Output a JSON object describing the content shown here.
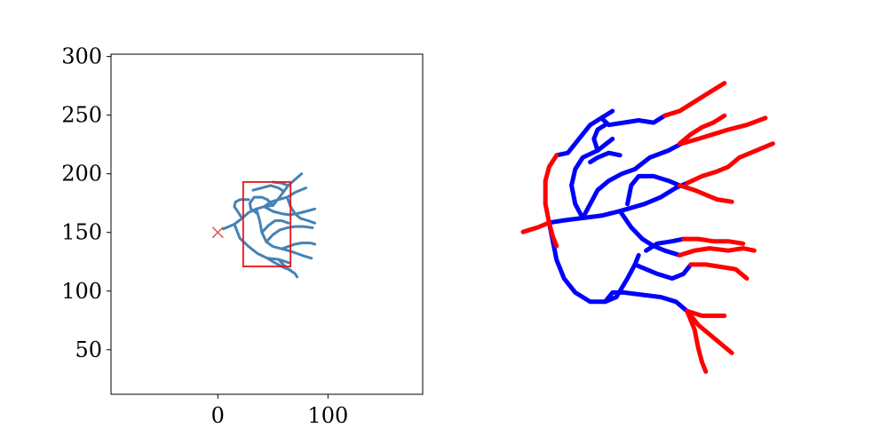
{
  "chart_data": [
    {
      "type": "line",
      "title": "",
      "xlabel": "",
      "ylabel": "",
      "xlim": [
        -97,
        186
      ],
      "ylim": [
        12,
        302
      ],
      "grid": false,
      "x_ticks": [
        {
          "value": 0,
          "label": "0"
        },
        {
          "value": 100,
          "label": "100"
        }
      ],
      "y_ticks": [
        {
          "value": 50,
          "label": "50"
        },
        {
          "value": 100,
          "label": "100"
        },
        {
          "value": 150,
          "label": "150"
        },
        {
          "value": 200,
          "label": "200"
        },
        {
          "value": 250,
          "label": "250"
        },
        {
          "value": 300,
          "label": "300"
        }
      ],
      "colors": {
        "branches": "#4682b4",
        "marker": "#d9534f",
        "box": "#e8141a"
      },
      "marker": {
        "shape": "x",
        "x": 0,
        "y": 150
      },
      "roi_box": {
        "x": [
          23,
          66
        ],
        "y": [
          121,
          193
        ]
      },
      "branches": [
        [
          [
            5,
            153
          ],
          [
            15,
            157
          ],
          [
            22,
            162
          ],
          [
            28,
            167
          ],
          [
            35,
            170
          ],
          [
            42,
            172
          ],
          [
            50,
            173
          ]
        ],
        [
          [
            22,
            162
          ],
          [
            18,
            168
          ],
          [
            15,
            172
          ],
          [
            16,
            176
          ],
          [
            20,
            178
          ],
          [
            28,
            178
          ]
        ],
        [
          [
            15,
            157
          ],
          [
            20,
            145
          ],
          [
            28,
            138
          ],
          [
            36,
            132
          ],
          [
            45,
            128
          ],
          [
            55,
            127
          ],
          [
            65,
            124
          ]
        ],
        [
          [
            50,
            173
          ],
          [
            56,
            180
          ],
          [
            60,
            185
          ],
          [
            64,
            190
          ],
          [
            70,
            195
          ],
          [
            76,
            200
          ]
        ],
        [
          [
            50,
            173
          ],
          [
            45,
            178
          ],
          [
            40,
            180
          ],
          [
            33,
            180
          ],
          [
            29,
            175
          ],
          [
            30,
            170
          ],
          [
            36,
            166
          ]
        ],
        [
          [
            35,
            170
          ],
          [
            38,
            160
          ],
          [
            40,
            150
          ],
          [
            44,
            142
          ],
          [
            50,
            138
          ],
          [
            58,
            136
          ],
          [
            66,
            134
          ]
        ],
        [
          [
            42,
            172
          ],
          [
            48,
            176
          ],
          [
            55,
            178
          ],
          [
            63,
            180
          ],
          [
            70,
            184
          ],
          [
            80,
            188
          ]
        ],
        [
          [
            42,
            172
          ],
          [
            50,
            168
          ],
          [
            58,
            166
          ],
          [
            65,
            165
          ],
          [
            72,
            166
          ],
          [
            80,
            168
          ],
          [
            88,
            170
          ]
        ],
        [
          [
            55,
            127
          ],
          [
            60,
            122
          ],
          [
            65,
            118
          ],
          [
            70,
            115
          ],
          [
            72,
            112
          ]
        ],
        [
          [
            58,
            136
          ],
          [
            64,
            138
          ],
          [
            70,
            140
          ],
          [
            76,
            141
          ],
          [
            84,
            141
          ],
          [
            88,
            140
          ]
        ],
        [
          [
            63,
            180
          ],
          [
            66,
            172
          ],
          [
            70,
            166
          ],
          [
            75,
            162
          ],
          [
            82,
            160
          ],
          [
            88,
            158
          ]
        ],
        [
          [
            60,
            185
          ],
          [
            55,
            188
          ],
          [
            48,
            190
          ],
          [
            40,
            188
          ],
          [
            32,
            186
          ]
        ],
        [
          [
            44,
            142
          ],
          [
            50,
            148
          ],
          [
            56,
            152
          ],
          [
            63,
            154
          ],
          [
            70,
            155
          ],
          [
            78,
            155
          ],
          [
            86,
            154
          ]
        ],
        [
          [
            45,
            128
          ],
          [
            52,
            124
          ],
          [
            60,
            120
          ],
          [
            66,
            118
          ]
        ],
        [
          [
            66,
            134
          ],
          [
            72,
            132
          ],
          [
            78,
            130
          ],
          [
            85,
            128
          ]
        ],
        [
          [
            40,
            150
          ],
          [
            46,
            156
          ],
          [
            52,
            160
          ],
          [
            58,
            160
          ],
          [
            64,
            158
          ]
        ],
        [
          [
            64,
            190
          ],
          [
            58,
            192
          ],
          [
            50,
            193
          ]
        ]
      ]
    },
    {
      "type": "line",
      "title": "",
      "xlabel": "",
      "ylabel": "",
      "axes": "off",
      "colors": {
        "inner": "#0000ff",
        "outer": "#ff0000"
      },
      "inner_segments": [
        [
          [
            0.04,
            0.48
          ],
          [
            0.12,
            0.47
          ],
          [
            0.22,
            0.46
          ],
          [
            0.32,
            0.45
          ],
          [
            0.42,
            0.43
          ],
          [
            0.55,
            0.4
          ],
          [
            0.64,
            0.37
          ],
          [
            0.72,
            0.33
          ],
          [
            0.78,
            0.31
          ]
        ],
        [
          [
            0.22,
            0.46
          ],
          [
            0.26,
            0.4
          ],
          [
            0.3,
            0.34
          ],
          [
            0.36,
            0.3
          ],
          [
            0.43,
            0.27
          ],
          [
            0.5,
            0.25
          ],
          [
            0.58,
            0.2
          ],
          [
            0.68,
            0.17
          ],
          [
            0.75,
            0.14
          ]
        ],
        [
          [
            0.08,
            0.19
          ],
          [
            0.14,
            0.18
          ],
          [
            0.2,
            0.12
          ],
          [
            0.26,
            0.06
          ],
          [
            0.32,
            0.03
          ],
          [
            0.38,
            0.0
          ]
        ],
        [
          [
            0.32,
            0.03
          ],
          [
            0.36,
            0.06
          ],
          [
            0.44,
            0.05
          ],
          [
            0.52,
            0.04
          ],
          [
            0.6,
            0.05
          ],
          [
            0.66,
            0.02
          ]
        ],
        [
          [
            0.22,
            0.46
          ],
          [
            0.18,
            0.4
          ],
          [
            0.16,
            0.32
          ],
          [
            0.18,
            0.25
          ],
          [
            0.22,
            0.2
          ],
          [
            0.3,
            0.17
          ],
          [
            0.38,
            0.12
          ]
        ],
        [
          [
            0.42,
            0.43
          ],
          [
            0.48,
            0.5
          ],
          [
            0.54,
            0.55
          ],
          [
            0.6,
            0.58
          ],
          [
            0.66,
            0.6
          ],
          [
            0.74,
            0.62
          ]
        ],
        [
          [
            0.04,
            0.48
          ],
          [
            0.06,
            0.56
          ],
          [
            0.08,
            0.64
          ],
          [
            0.12,
            0.72
          ],
          [
            0.18,
            0.78
          ],
          [
            0.26,
            0.82
          ],
          [
            0.34,
            0.82
          ],
          [
            0.4,
            0.8
          ]
        ],
        [
          [
            0.34,
            0.82
          ],
          [
            0.38,
            0.78
          ],
          [
            0.44,
            0.78
          ],
          [
            0.54,
            0.79
          ],
          [
            0.64,
            0.8
          ],
          [
            0.72,
            0.82
          ],
          [
            0.78,
            0.86
          ]
        ],
        [
          [
            0.4,
            0.8
          ],
          [
            0.46,
            0.72
          ],
          [
            0.5,
            0.66
          ],
          [
            0.52,
            0.62
          ]
        ],
        [
          [
            0.5,
            0.66
          ],
          [
            0.56,
            0.68
          ],
          [
            0.62,
            0.7
          ],
          [
            0.7,
            0.72
          ],
          [
            0.76,
            0.7
          ],
          [
            0.8,
            0.66
          ]
        ],
        [
          [
            0.46,
            0.4
          ],
          [
            0.48,
            0.32
          ],
          [
            0.52,
            0.28
          ],
          [
            0.6,
            0.28
          ],
          [
            0.68,
            0.3
          ],
          [
            0.74,
            0.32
          ]
        ],
        [
          [
            0.56,
            0.6
          ],
          [
            0.62,
            0.57
          ],
          [
            0.7,
            0.56
          ],
          [
            0.76,
            0.55
          ]
        ],
        [
          [
            0.26,
            0.22
          ],
          [
            0.3,
            0.2
          ],
          [
            0.36,
            0.18
          ],
          [
            0.42,
            0.19
          ]
        ],
        [
          [
            0.3,
            0.17
          ],
          [
            0.28,
            0.12
          ],
          [
            0.3,
            0.08
          ],
          [
            0.34,
            0.06
          ]
        ]
      ],
      "outer_segments": [
        [
          [
            0.66,
            0.02
          ],
          [
            0.74,
            0.0
          ],
          [
            0.82,
            -0.04
          ],
          [
            0.9,
            -0.08
          ],
          [
            0.98,
            -0.12
          ]
        ],
        [
          [
            0.78,
            0.31
          ],
          [
            0.86,
            0.28
          ],
          [
            0.94,
            0.26
          ],
          [
            1.0,
            0.24
          ],
          [
            1.06,
            0.2
          ],
          [
            1.12,
            0.18
          ],
          [
            1.18,
            0.16
          ],
          [
            1.24,
            0.14
          ]
        ],
        [
          [
            0.75,
            0.14
          ],
          [
            0.84,
            0.12
          ],
          [
            0.92,
            0.1
          ],
          [
            1.0,
            0.08
          ],
          [
            1.1,
            0.06
          ],
          [
            1.2,
            0.03
          ]
        ],
        [
          [
            0.74,
            0.62
          ],
          [
            0.82,
            0.6
          ],
          [
            0.9,
            0.59
          ],
          [
            1.0,
            0.6
          ],
          [
            1.08,
            0.59
          ],
          [
            1.14,
            0.6
          ]
        ],
        [
          [
            0.8,
            0.66
          ],
          [
            0.88,
            0.66
          ],
          [
            0.96,
            0.67
          ],
          [
            1.04,
            0.68
          ],
          [
            1.1,
            0.72
          ]
        ],
        [
          [
            0.78,
            0.86
          ],
          [
            0.84,
            0.92
          ],
          [
            0.9,
            0.96
          ],
          [
            0.96,
            1.0
          ],
          [
            1.02,
            1.04
          ]
        ],
        [
          [
            0.78,
            0.86
          ],
          [
            0.82,
            0.94
          ],
          [
            0.84,
            1.02
          ],
          [
            0.86,
            1.08
          ],
          [
            0.88,
            1.12
          ]
        ],
        [
          [
            0.78,
            0.86
          ],
          [
            0.86,
            0.88
          ],
          [
            0.92,
            0.88
          ],
          [
            0.98,
            0.88
          ]
        ],
        [
          [
            -0.1,
            0.52
          ],
          [
            -0.02,
            0.5
          ],
          [
            0.04,
            0.48
          ]
        ],
        [
          [
            0.04,
            0.48
          ],
          [
            0.02,
            0.4
          ],
          [
            0.02,
            0.3
          ],
          [
            0.04,
            0.24
          ],
          [
            0.08,
            0.19
          ]
        ],
        [
          [
            0.04,
            0.48
          ],
          [
            0.06,
            0.54
          ],
          [
            0.08,
            0.58
          ]
        ],
        [
          [
            0.74,
            0.32
          ],
          [
            0.82,
            0.34
          ],
          [
            0.88,
            0.36
          ],
          [
            0.94,
            0.38
          ],
          [
            1.02,
            0.39
          ]
        ],
        [
          [
            0.76,
            0.55
          ],
          [
            0.84,
            0.55
          ],
          [
            0.92,
            0.56
          ],
          [
            1.0,
            0.56
          ],
          [
            1.08,
            0.57
          ]
        ],
        [
          [
            0.74,
            0.14
          ],
          [
            0.8,
            0.1
          ],
          [
            0.86,
            0.07
          ],
          [
            0.92,
            0.05
          ],
          [
            0.98,
            0.02
          ]
        ]
      ]
    }
  ]
}
